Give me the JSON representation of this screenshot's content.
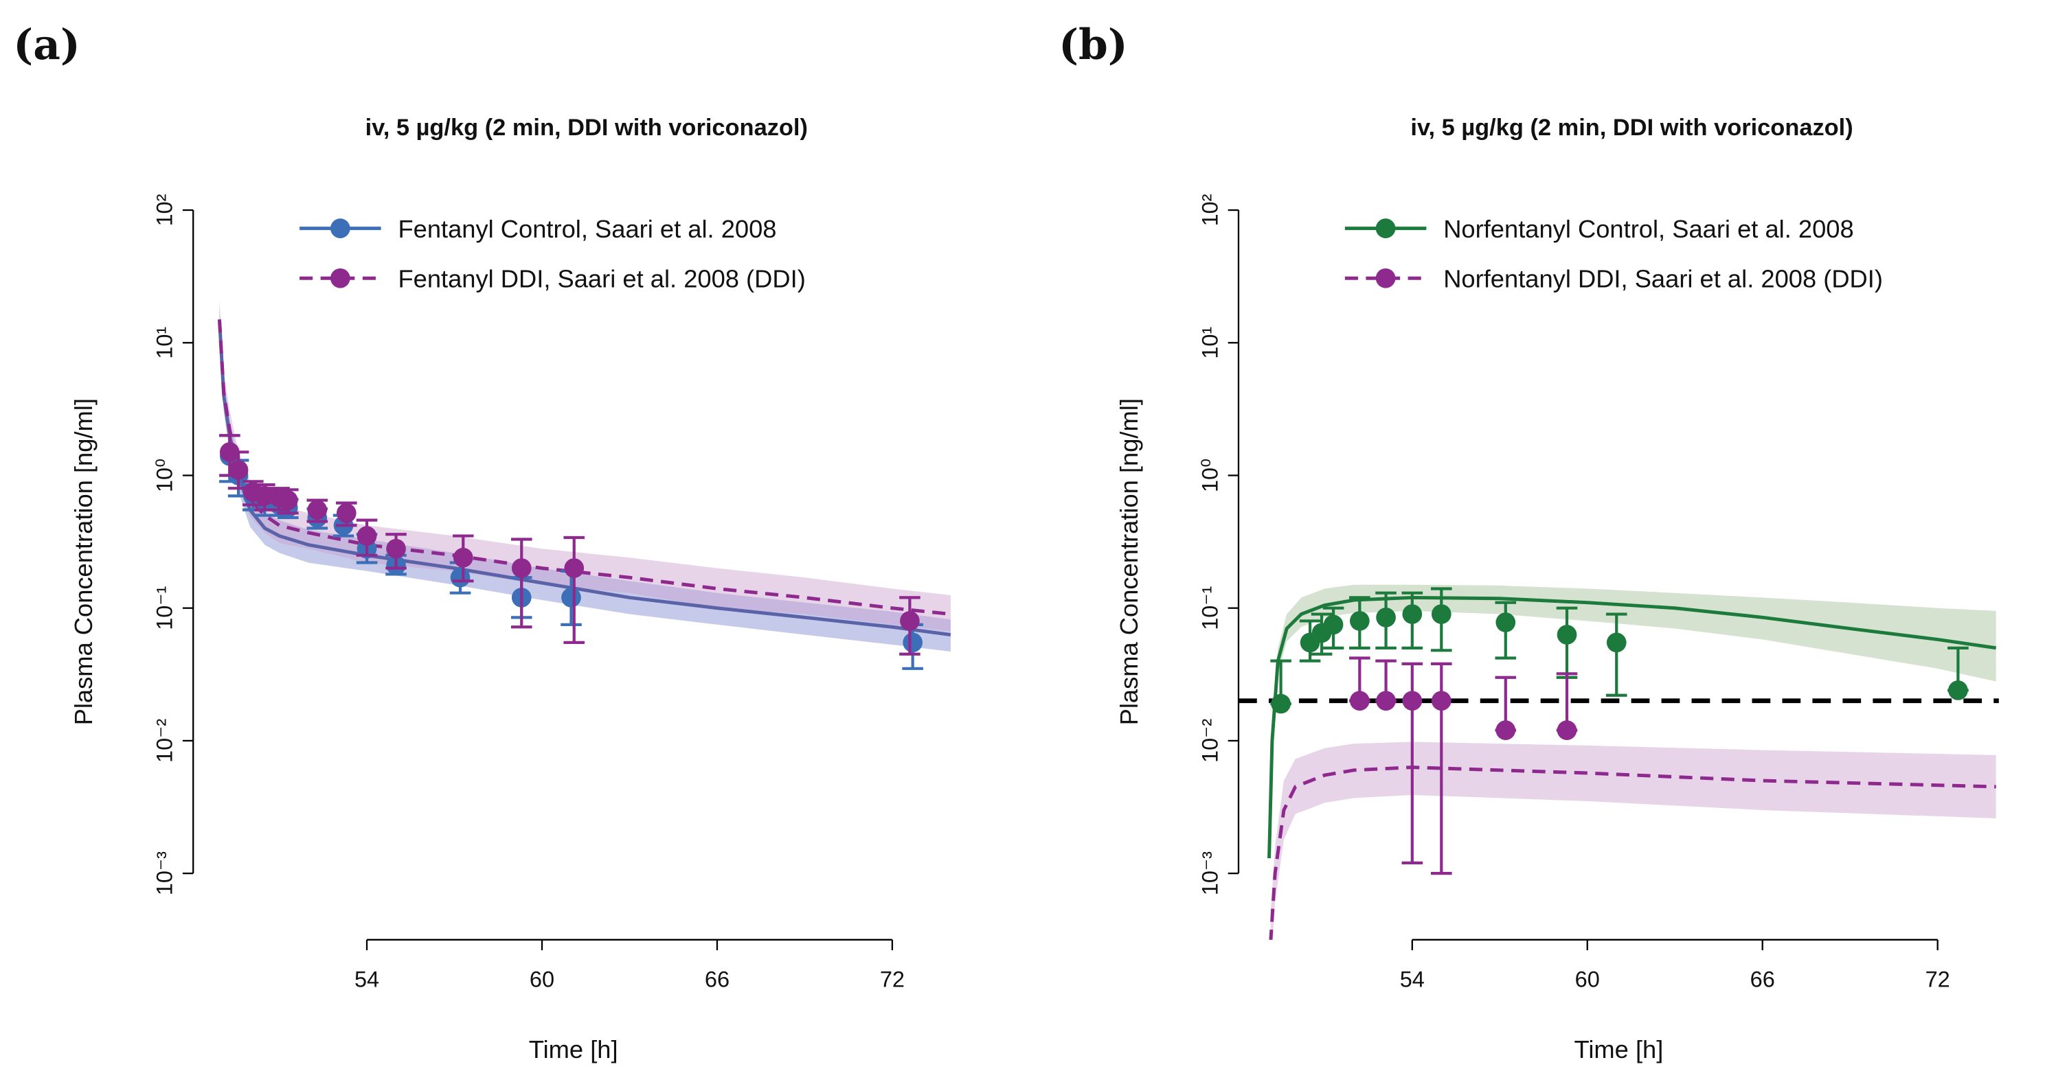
{
  "chart_data": [
    {
      "type": "line",
      "panel": "(a)",
      "title": "iv, 5 µg/kg (2 min, DDI with voriconazol)",
      "xlabel": "Time [h]",
      "ylabel": "Plasma Concentration [ng/ml]",
      "xlim": [
        48.05,
        74.1
      ],
      "xticks": [
        54,
        60,
        66,
        72
      ],
      "ylim": [
        0.000316,
        158
      ],
      "ylog": true,
      "yticks": [
        {
          "value": 100,
          "label": "10²"
        },
        {
          "value": 10,
          "label": "10¹"
        },
        {
          "value": 1,
          "label": "10⁰"
        },
        {
          "value": 0.1,
          "label": "10⁻¹"
        },
        {
          "value": 0.01,
          "label": "10⁻²"
        },
        {
          "value": 0.001,
          "label": "10⁻³"
        }
      ],
      "legend": "upper center",
      "series": [
        {
          "name": "Fentanyl Control, Saari et al. 2008",
          "color": "#3d6fb8",
          "line_color": "#5a63a8",
          "band_color": "#7f88d0",
          "dash": false,
          "sim": {
            "x": [
              48.95,
              49.1,
              49.3,
              49.6,
              50,
              50.5,
              51,
              52,
              54,
              57,
              60,
              63,
              66,
              69,
              72,
              74
            ],
            "values": [
              15,
              4,
              2,
              1,
              0.55,
              0.4,
              0.35,
              0.3,
              0.25,
              0.2,
              0.155,
              0.12,
              0.1,
              0.085,
              0.072,
              0.063
            ],
            "lower": [
              11,
              3,
              1.5,
              0.75,
              0.41,
              0.3,
              0.26,
              0.22,
              0.19,
              0.15,
              0.115,
              0.09,
              0.075,
              0.063,
              0.053,
              0.047
            ],
            "upper": [
              19,
              5.2,
              2.6,
              1.3,
              0.72,
              0.52,
              0.46,
              0.39,
              0.33,
              0.26,
              0.2,
              0.16,
              0.13,
              0.11,
              0.094,
              0.082
            ]
          },
          "observed": {
            "x": [
              49.3,
              49.6,
              50.1,
              50.5,
              51,
              51.3,
              52.3,
              53.2,
              54,
              55,
              57.2,
              59.3,
              61,
              72.7
            ],
            "values": [
              1.4,
              1.0,
              0.7,
              0.65,
              0.6,
              0.57,
              0.48,
              0.42,
              0.28,
              0.21,
              0.17,
              0.12,
              0.12,
              0.055
            ],
            "err_low": [
              0.9,
              0.7,
              0.55,
              0.5,
              0.5,
              0.48,
              0.4,
              0.35,
              0.22,
              0.18,
              0.13,
              0.085,
              0.075,
              0.035
            ],
            "err_high": [
              2.0,
              1.3,
              0.85,
              0.78,
              0.7,
              0.66,
              0.56,
              0.5,
              0.36,
              0.25,
              0.22,
              0.17,
              0.19,
              0.075
            ]
          }
        },
        {
          "name": "Fentanyl DDI, Saari et al. 2008 (DDI)",
          "color": "#8e2a8e",
          "line_color": "#8e2a8e",
          "band_color": "#c9a0cf",
          "dash": true,
          "sim": {
            "x": [
              48.95,
              49.1,
              49.3,
              49.6,
              50,
              50.5,
              51,
              52,
              54,
              57,
              60,
              63,
              66,
              69,
              72,
              74
            ],
            "values": [
              15,
              4.2,
              2.2,
              1.1,
              0.65,
              0.5,
              0.42,
              0.37,
              0.3,
              0.25,
              0.2,
              0.17,
              0.14,
              0.12,
              0.1,
              0.09
            ],
            "lower": [
              11,
              3.2,
              1.6,
              0.82,
              0.49,
              0.37,
              0.31,
              0.28,
              0.22,
              0.19,
              0.15,
              0.13,
              0.1,
              0.09,
              0.075,
              0.067
            ],
            "upper": [
              21,
              5.9,
              3.1,
              1.5,
              0.91,
              0.7,
              0.59,
              0.52,
              0.42,
              0.35,
              0.28,
              0.24,
              0.2,
              0.17,
              0.14,
              0.125
            ]
          },
          "observed": {
            "x": [
              49.3,
              49.6,
              50.1,
              50.5,
              51,
              51.3,
              52.3,
              53.3,
              54,
              55,
              57.3,
              59.3,
              61.1,
              72.6
            ],
            "values": [
              1.5,
              1.1,
              0.75,
              0.7,
              0.68,
              0.65,
              0.55,
              0.52,
              0.35,
              0.28,
              0.24,
              0.2,
              0.2,
              0.08
            ],
            "err_low": [
              1.0,
              0.8,
              0.6,
              0.55,
              0.55,
              0.52,
              0.45,
              0.42,
              0.25,
              0.2,
              0.16,
              0.072,
              0.055,
              0.045
            ],
            "err_high": [
              2.0,
              1.5,
              0.9,
              0.85,
              0.8,
              0.78,
              0.65,
              0.62,
              0.46,
              0.36,
              0.35,
              0.33,
              0.34,
              0.12
            ]
          }
        }
      ]
    },
    {
      "type": "line",
      "panel": "(b)",
      "title": "iv, 5 µg/kg (2 min, DDI with voriconazol)",
      "xlabel": "Time [h]",
      "ylabel": "Plasma Concentration [ng/ml]",
      "xlim": [
        48.05,
        74.1
      ],
      "xticks": [
        54,
        60,
        66,
        72
      ],
      "ylim": [
        0.000316,
        158
      ],
      "ylog": true,
      "yticks": [
        {
          "value": 100,
          "label": "10²"
        },
        {
          "value": 10,
          "label": "10¹"
        },
        {
          "value": 1,
          "label": "10⁰"
        },
        {
          "value": 0.1,
          "label": "10⁻¹"
        },
        {
          "value": 0.01,
          "label": "10⁻²"
        },
        {
          "value": 0.001,
          "label": "10⁻³"
        }
      ],
      "legend": "upper center",
      "reference_line": 0.02,
      "reference_color": "#000000",
      "series": [
        {
          "name": "Norfentanyl Control, Saari et al. 2008",
          "color": "#1c7a3c",
          "line_color": "#1c7a3c",
          "band_color": "#9fbf95",
          "dash": false,
          "sim": {
            "x": [
              49.1,
              49.2,
              49.4,
              49.7,
              50.2,
              51,
              52,
              54,
              57,
              60,
              63,
              66,
              69,
              72,
              74
            ],
            "values": [
              0.0013,
              0.01,
              0.04,
              0.07,
              0.09,
              0.105,
              0.115,
              0.12,
              0.118,
              0.11,
              0.1,
              0.085,
              0.07,
              0.058,
              0.05
            ],
            "lower": [
              0.0011,
              0.008,
              0.032,
              0.056,
              0.072,
              0.085,
              0.092,
              0.095,
              0.09,
              0.08,
              0.07,
              0.058,
              0.045,
              0.035,
              0.028
            ],
            "upper": [
              0.0015,
              0.012,
              0.05,
              0.09,
              0.12,
              0.14,
              0.15,
              0.15,
              0.148,
              0.14,
              0.13,
              0.12,
              0.11,
              0.1,
              0.095
            ]
          },
          "observed": {
            "x": [
              49.5,
              50.5,
              50.9,
              51.3,
              52.2,
              53.1,
              54,
              55,
              57.2,
              59.3,
              61,
              72.7
            ],
            "values": [
              0.019,
              0.055,
              0.065,
              0.075,
              0.08,
              0.085,
              0.09,
              0.09,
              0.078,
              0.063,
              0.055,
              0.024
            ],
            "err_low": [
              0.019,
              0.04,
              0.045,
              0.05,
              0.05,
              0.05,
              0.05,
              0.048,
              0.042,
              0.03,
              0.022,
              0.024
            ],
            "err_high": [
              0.04,
              0.08,
              0.09,
              0.1,
              0.12,
              0.13,
              0.13,
              0.14,
              0.11,
              0.1,
              0.09,
              0.05
            ]
          }
        },
        {
          "name": "Norfentanyl DDI, Saari et al. 2008 (DDI)",
          "color": "#8e2a8e",
          "line_color": "#8e2a8e",
          "band_color": "#c9a0cf",
          "dash": true,
          "sim": {
            "x": [
              49.15,
              49.3,
              49.6,
              50,
              51,
              52,
              54,
              57,
              60,
              66,
              74
            ],
            "values": [
              0.0003,
              0.001,
              0.003,
              0.0045,
              0.0055,
              0.006,
              0.0063,
              0.006,
              0.0057,
              0.005,
              0.0045
            ],
            "lower": [
              0.00018,
              0.0006,
              0.0018,
              0.0028,
              0.0034,
              0.0037,
              0.0039,
              0.0037,
              0.0035,
              0.003,
              0.0026
            ],
            "upper": [
              0.0005,
              0.0016,
              0.005,
              0.0073,
              0.0088,
              0.0095,
              0.0098,
              0.0095,
              0.0092,
              0.0085,
              0.0078
            ]
          },
          "observed": {
            "x": [
              52.2,
              53.1,
              54,
              55,
              57.2,
              59.3
            ],
            "values": [
              0.02,
              0.02,
              0.02,
              0.02,
              0.012,
              0.012
            ],
            "err_low": [
              0.02,
              0.02,
              0.0012,
              0.001,
              0.012,
              0.012
            ],
            "err_high": [
              0.042,
              0.04,
              0.038,
              0.038,
              0.03,
              0.032
            ]
          }
        }
      ]
    }
  ]
}
